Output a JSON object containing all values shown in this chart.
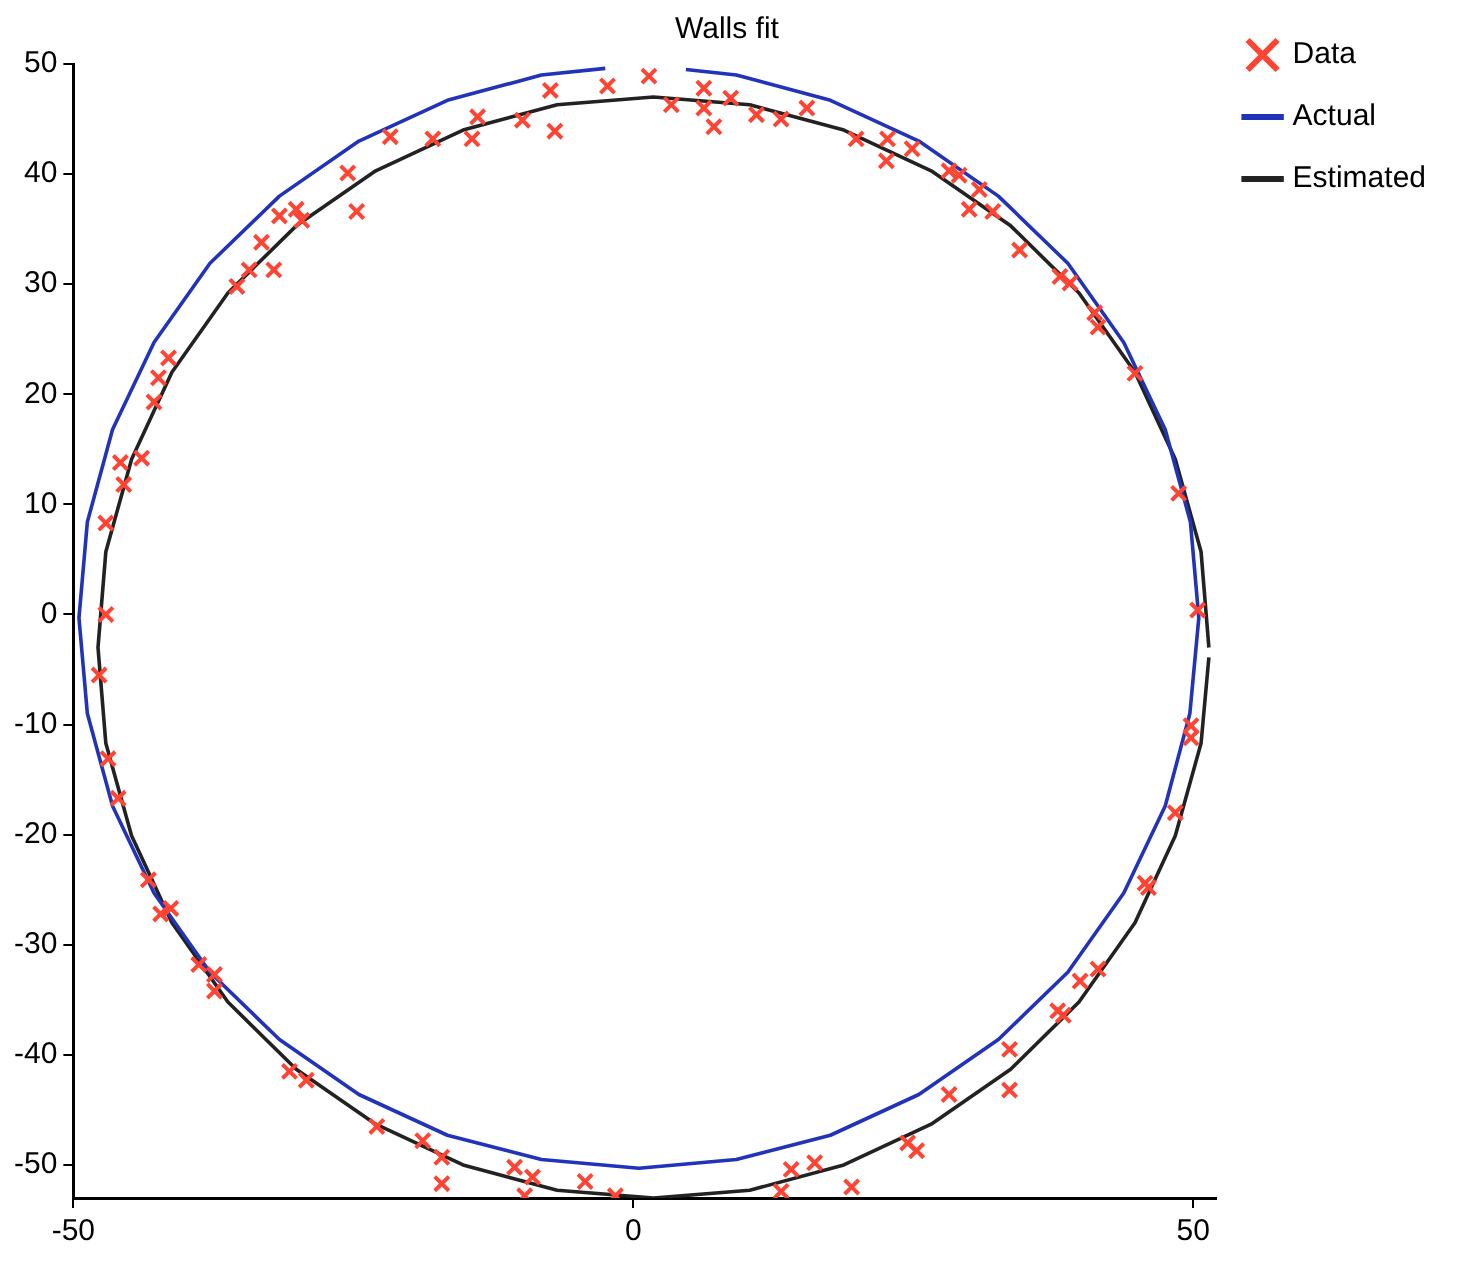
{
  "chart_data": {
    "type": "scatter",
    "title": "Walls fit",
    "xlim": [
      -50,
      52
    ],
    "ylim": [
      -53,
      50
    ],
    "xticks": [
      -50,
      0,
      50
    ],
    "yticks": [
      -50,
      -40,
      -30,
      -20,
      -10,
      0,
      10,
      20,
      30,
      40,
      50
    ],
    "grid": false,
    "legend": "top right",
    "series": [
      {
        "name": "Data",
        "type": "scatter",
        "marker": "cross",
        "color": "#ff4433",
        "x": [
          -47.1,
          -47.1,
          -45.8,
          -45.5,
          -43.9,
          -42.8,
          -42.4,
          -41.5,
          -35.4,
          -34.3,
          -33.2,
          -32.1,
          -31.6,
          -30.1,
          -29.6,
          -25.5,
          -24.7,
          -21.7,
          -17.9,
          -14.4,
          -13.9,
          -9.9,
          -7.4,
          -7.0,
          -2.3,
          1.4,
          3.4,
          6.3,
          6.3,
          7.2,
          8.7,
          11.0,
          13.2,
          15.5,
          19.9,
          22.6,
          22.7,
          24.9,
          28.2,
          29.1,
          30.0,
          30.9,
          32.1,
          34.5,
          38.1,
          39.0,
          41.2,
          41.5,
          44.8,
          48.7,
          50.4,
          -47.7,
          -46.9,
          -46.0,
          -43.3,
          -42.2,
          -41.3,
          -38.8,
          -37.4,
          -37.4,
          -30.7,
          -29.2,
          -22.9,
          -18.8,
          -17.1,
          -17.1,
          -10.6,
          -9.0,
          -9.7,
          -4.3,
          -1.6,
          13.2,
          14.1,
          16.2,
          19.5,
          24.5,
          25.3,
          28.2,
          33.6,
          33.6,
          37.9,
          38.4,
          39.9,
          41.5,
          45.7,
          46.0,
          48.4,
          49.8,
          49.8
        ],
        "values": [
          0,
          8.3,
          13.8,
          11.8,
          14.2,
          19.3,
          21.5,
          23.3,
          29.8,
          31.3,
          33.8,
          31.3,
          36.2,
          36.8,
          35.8,
          40.1,
          36.6,
          43.4,
          43.2,
          43.2,
          45.2,
          44.9,
          47.6,
          43.9,
          48.0,
          48.9,
          46.3,
          47.8,
          46.0,
          44.3,
          46.9,
          45.4,
          45.0,
          46.0,
          43.2,
          41.2,
          43.2,
          42.3,
          40.3,
          39.9,
          36.8,
          38.6,
          36.6,
          33.1,
          30.7,
          30.1,
          27.4,
          26.1,
          21.9,
          11.0,
          0.4,
          -5.5,
          -13.1,
          -16.7,
          -24.1,
          -27.2,
          -26.7,
          -31.8,
          -32.7,
          -34.2,
          -41.5,
          -42.3,
          -46.5,
          -47.8,
          -49.3,
          -51.7,
          -50.2,
          -51.1,
          -52.8,
          -51.5,
          -52.8,
          -52.4,
          -50.4,
          -49.8,
          -52.0,
          -48.0,
          -48.7,
          -43.6,
          -39.5,
          -43.2,
          -36.0,
          -36.4,
          -33.3,
          -32.2,
          -24.4,
          -24.8,
          -18.0,
          -10.1,
          -11.2
        ]
      },
      {
        "name": "Actual",
        "type": "line",
        "marker": "none",
        "color": "#2233bb",
        "x": [
          4.7,
          9.2,
          17.6,
          25.5,
          32.6,
          38.8,
          43.8,
          47.5,
          49.75,
          50.5,
          49.7,
          47.5,
          43.8,
          38.8,
          32.6,
          25.5,
          17.6,
          9.2,
          0.5,
          -8.2,
          -16.6,
          -24.5,
          -31.6,
          -37.8,
          -42.8,
          -46.5,
          -48.75,
          -49.5,
          -48.75,
          -46.5,
          -42.8,
          -37.8,
          -31.6,
          -24.5,
          -16.6,
          -8.2,
          -2.5
        ],
        "values": [
          49.5,
          49.0,
          46.7,
          43.0,
          38.0,
          31.9,
          24.7,
          16.8,
          8.4,
          -0.3,
          -9.0,
          -17.4,
          -25.3,
          -32.5,
          -38.6,
          -43.6,
          -47.3,
          -49.5,
          -50.3,
          -49.5,
          -47.3,
          -43.6,
          -38.6,
          -32.5,
          -25.3,
          -17.4,
          -9.0,
          -0.3,
          8.4,
          16.8,
          24.7,
          31.9,
          38.0,
          43.0,
          46.7,
          49.0,
          49.6
        ]
      },
      {
        "name": "Estimated",
        "type": "line",
        "marker": "none",
        "color": "#222222",
        "x": [
          51.4,
          50.7,
          48.4,
          44.8,
          39.8,
          33.7,
          26.6,
          18.8,
          10.4,
          1.8,
          -6.8,
          -15.2,
          -23.0,
          -30.1,
          -36.2,
          -41.2,
          -44.8,
          -47.1,
          -47.8,
          -47.1,
          -44.8,
          -41.2,
          -36.2,
          -30.1,
          -23.0,
          -15.2,
          -6.8,
          1.8,
          10.4,
          18.8,
          26.6,
          33.7,
          39.8,
          44.8,
          48.4,
          50.7,
          51.4
        ],
        "values": [
          -3,
          5.7,
          14.1,
          22.0,
          29.2,
          35.3,
          40.3,
          44.0,
          46.3,
          47.0,
          46.3,
          44.0,
          40.3,
          35.3,
          29.2,
          22.0,
          14.1,
          5.7,
          -3,
          -11.7,
          -20.1,
          -28.0,
          -35.2,
          -41.3,
          -46.3,
          -50.0,
          -52.3,
          -53.0,
          -52.3,
          -50.0,
          -46.3,
          -41.3,
          -35.2,
          -28.0,
          -20.1,
          -11.7,
          -3.9
        ]
      }
    ]
  }
}
